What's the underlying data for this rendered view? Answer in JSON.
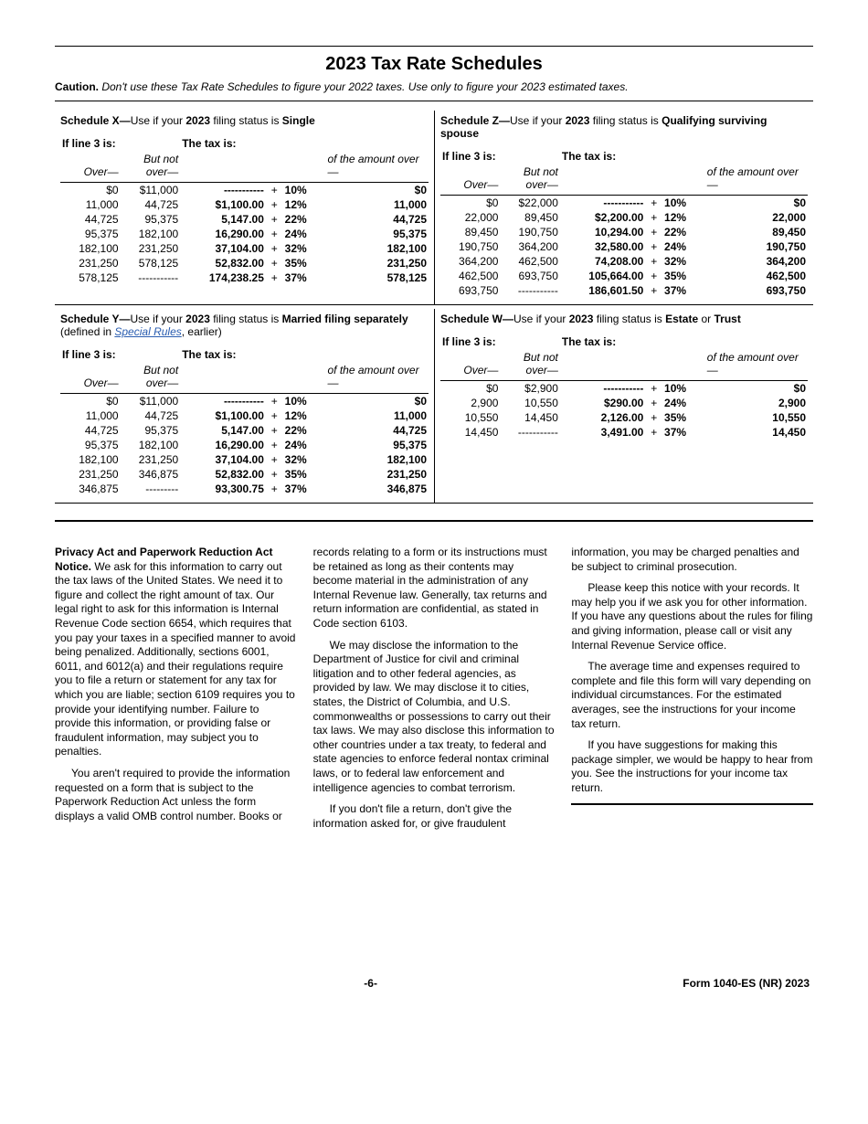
{
  "page": {
    "title": "2023 Tax Rate Schedules",
    "caution_label": "Caution.",
    "caution_text": "Don't use these Tax Rate Schedules to figure your 2022 taxes. Use only to figure your 2023 estimated taxes.",
    "page_number": "-6-",
    "form_id": "Form 1040-ES (NR) 2023"
  },
  "header_labels": {
    "ifline": "If line 3 is:",
    "thetax": "The tax is:",
    "over": "Over—",
    "notover": "But not over—",
    "ofamt": "of the amount over—"
  },
  "schedules": [
    {
      "id": "X",
      "title_prefix": "Schedule X—",
      "title_mid": "Use if your ",
      "title_year": "2023",
      "title_filing": " filing status is ",
      "title_status": "Single",
      "title_suffix": "",
      "separately_note": "",
      "rows": [
        {
          "over": "$0",
          "notover": "$11,000",
          "base": "-----------",
          "rate": "10%",
          "ofamt": "$0"
        },
        {
          "over": "11,000",
          "notover": "44,725",
          "base": "$1,100.00",
          "rate": "12%",
          "ofamt": "11,000"
        },
        {
          "over": "44,725",
          "notover": "95,375",
          "base": "5,147.00",
          "rate": "22%",
          "ofamt": "44,725"
        },
        {
          "over": "95,375",
          "notover": "182,100",
          "base": "16,290.00",
          "rate": "24%",
          "ofamt": "95,375"
        },
        {
          "over": "182,100",
          "notover": "231,250",
          "base": "37,104.00",
          "rate": "32%",
          "ofamt": "182,100"
        },
        {
          "over": "231,250",
          "notover": "578,125",
          "base": "52,832.00",
          "rate": "35%",
          "ofamt": "231,250"
        },
        {
          "over": "578,125",
          "notover": "-----------",
          "base": "174,238.25",
          "rate": "37%",
          "ofamt": "578,125"
        }
      ]
    },
    {
      "id": "Z",
      "title_prefix": "Schedule Z—",
      "title_mid": "Use if your ",
      "title_year": "2023",
      "title_filing": " filing status is ",
      "title_status": "Qualifying surviving spouse",
      "title_suffix": "",
      "separately_note": "",
      "rows": [
        {
          "over": "$0",
          "notover": "$22,000",
          "base": "-----------",
          "rate": "10%",
          "ofamt": "$0"
        },
        {
          "over": "22,000",
          "notover": "89,450",
          "base": "$2,200.00",
          "rate": "12%",
          "ofamt": "22,000"
        },
        {
          "over": "89,450",
          "notover": "190,750",
          "base": "10,294.00",
          "rate": "22%",
          "ofamt": "89,450"
        },
        {
          "over": "190,750",
          "notover": "364,200",
          "base": "32,580.00",
          "rate": "24%",
          "ofamt": "190,750"
        },
        {
          "over": "364,200",
          "notover": "462,500",
          "base": "74,208.00",
          "rate": "32%",
          "ofamt": "364,200"
        },
        {
          "over": "462,500",
          "notover": "693,750",
          "base": "105,664.00",
          "rate": "35%",
          "ofamt": "462,500"
        },
        {
          "over": "693,750",
          "notover": "-----------",
          "base": "186,601.50",
          "rate": "37%",
          "ofamt": "693,750"
        }
      ]
    },
    {
      "id": "Y",
      "title_prefix": "Schedule Y—",
      "title_mid": "Use if your ",
      "title_year": "2023",
      "title_filing": " filing status is ",
      "title_status": "Married filing separately",
      "title_suffix": " (defined in ",
      "title_link": "Special Rules",
      "title_end": ", earlier)",
      "rows": [
        {
          "over": "$0",
          "notover": "$11,000",
          "base": "-----------",
          "rate": "10%",
          "ofamt": "$0"
        },
        {
          "over": "11,000",
          "notover": "44,725",
          "base": "$1,100.00",
          "rate": "12%",
          "ofamt": "11,000"
        },
        {
          "over": "44,725",
          "notover": "95,375",
          "base": "5,147.00",
          "rate": "22%",
          "ofamt": "44,725"
        },
        {
          "over": "95,375",
          "notover": "182,100",
          "base": "16,290.00",
          "rate": "24%",
          "ofamt": "95,375"
        },
        {
          "over": "182,100",
          "notover": "231,250",
          "base": "37,104.00",
          "rate": "32%",
          "ofamt": "182,100"
        },
        {
          "over": "231,250",
          "notover": "346,875",
          "base": "52,832.00",
          "rate": "35%",
          "ofamt": "231,250"
        },
        {
          "over": "346,875",
          "notover": "---------",
          "base": "93,300.75",
          "rate": "37%",
          "ofamt": "346,875"
        }
      ]
    },
    {
      "id": "W",
      "title_prefix": "Schedule W—",
      "title_mid": "Use if your ",
      "title_year": "2023",
      "title_filing": " filing status is ",
      "title_status_a": "Estate",
      "title_or": " or ",
      "title_status_b": "Trust",
      "rows": [
        {
          "over": "$0",
          "notover": "$2,900",
          "base": "-----------",
          "rate": "10%",
          "ofamt": "$0"
        },
        {
          "over": "2,900",
          "notover": "10,550",
          "base": "$290.00",
          "rate": "24%",
          "ofamt": "2,900"
        },
        {
          "over": "10,550",
          "notover": "14,450",
          "base": "2,126.00",
          "rate": "35%",
          "ofamt": "10,550"
        },
        {
          "over": "14,450",
          "notover": "-----------",
          "base": "3,491.00",
          "rate": "37%",
          "ofamt": "14,450"
        }
      ]
    }
  ],
  "notice": {
    "heading": "Privacy Act and Paperwork Reduction Act Notice.",
    "p1": "We ask for this information to carry out the tax laws of the United States. We need it to figure and collect the right amount of tax. Our legal right to ask for this information is Internal Revenue Code section 6654, which requires that you pay your taxes in a specified manner to avoid being penalized. Additionally, sections 6001, 6011, and 6012(a) and their regulations require you to file a return or statement for any tax for which you are liable; section 6109 requires you to provide your identifying number. Failure to provide this information, or providing false or fraudulent information, may subject you to penalties.",
    "p2": "You aren't required to provide the information requested on a form that is subject to the Paperwork Reduction Act unless the form displays a valid OMB control number. Books or records relating to a form or its instructions must be retained as long as their contents may become material in the administration of any Internal Revenue law. Generally, tax returns and return information are confidential, as stated in Code section 6103.",
    "p3": "We may disclose the information to the Department of Justice for civil and criminal litigation and to other federal agencies, as provided by law. We may disclose it to cities, states, the District of Columbia, and U.S. commonwealths or possessions to carry out their tax laws. We may also disclose this information to other countries under a tax treaty, to federal and state agencies to enforce federal nontax criminal laws, or to federal law enforcement and intelligence agencies to combat terrorism.",
    "p4": "If you don't file a return, don't give the information asked for, or give fraudulent information, you may be charged penalties and be subject to criminal prosecution.",
    "p5": "Please keep this notice with your records. It may help you if we ask you for other information. If you have any questions about the rules for filing and giving information, please call or visit any Internal Revenue Service office.",
    "p6": "The average time and expenses required to complete and file this form will vary depending on individual circumstances. For the estimated averages, see the instructions for your income tax return.",
    "p7": "If you have suggestions for making this package simpler, we would be happy to hear from you. See the instructions for your income tax return."
  }
}
